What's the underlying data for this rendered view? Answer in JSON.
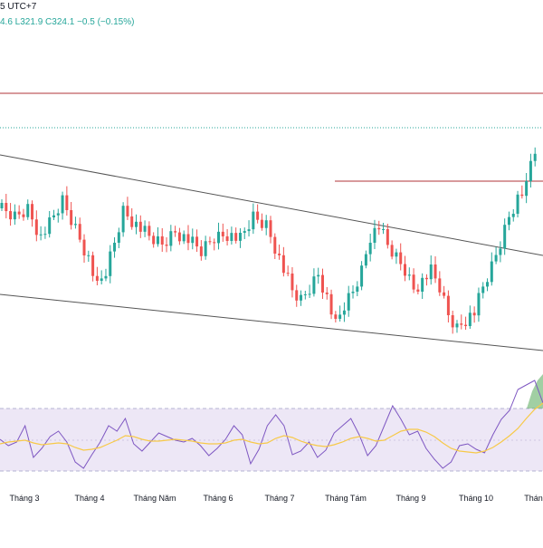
{
  "header": {
    "timeframe": "5 UTC+7",
    "ohlc": "4.6  L321.9  C324.1  −0.5 (−0.15%)"
  },
  "colors": {
    "up": "#26a69a",
    "down": "#ef5350",
    "trendline": "#555555",
    "resistance": "#b2353a",
    "dotted_level": "#26a69a",
    "rsi": "#7e57c2",
    "rsi_ma": "#f7c948",
    "rsi_band": "#ede7f6",
    "overbought_fill": "#43a047",
    "axis_text": "#131722"
  },
  "chart_data": [
    {
      "type": "candlestick",
      "pane": "price",
      "xlabel_ticks": [
        "Tháng 3",
        "Tháng 4",
        "Tháng Năm",
        "Tháng 6",
        "Tháng 7",
        "Tháng Tám",
        "Tháng 9",
        "Tháng 10",
        "Tháng"
      ],
      "close_path": [
        [
          0,
          232
        ],
        [
          3,
          240
        ],
        [
          6,
          230
        ],
        [
          9,
          262
        ],
        [
          11,
          248
        ],
        [
          14,
          222
        ],
        [
          17,
          252
        ],
        [
          20,
          285
        ],
        [
          22,
          318
        ],
        [
          24,
          300
        ],
        [
          26,
          268
        ],
        [
          28,
          232
        ],
        [
          31,
          248
        ],
        [
          34,
          262
        ],
        [
          37,
          270
        ],
        [
          40,
          255
        ],
        [
          43,
          265
        ],
        [
          46,
          278
        ],
        [
          49,
          262
        ],
        [
          52,
          258
        ],
        [
          55,
          265
        ],
        [
          58,
          240
        ],
        [
          61,
          248
        ],
        [
          63,
          272
        ],
        [
          65,
          298
        ],
        [
          67,
          322
        ],
        [
          69,
          332
        ],
        [
          71,
          318
        ],
        [
          73,
          302
        ],
        [
          75,
          328
        ],
        [
          77,
          360
        ],
        [
          79,
          338
        ],
        [
          81,
          322
        ],
        [
          83,
          298
        ],
        [
          85,
          260
        ],
        [
          87,
          250
        ],
        [
          89,
          272
        ],
        [
          91,
          285
        ],
        [
          93,
          298
        ],
        [
          95,
          318
        ],
        [
          97,
          310
        ],
        [
          99,
          300
        ],
        [
          101,
          318
        ],
        [
          103,
          348
        ],
        [
          105,
          362
        ],
        [
          107,
          352
        ],
        [
          109,
          345
        ],
        [
          111,
          318
        ],
        [
          113,
          295
        ],
        [
          115,
          268
        ],
        [
          117,
          238
        ],
        [
          119,
          218
        ],
        [
          121,
          208
        ],
        [
          122.5,
          165
        ]
      ],
      "x_max": 124,
      "price_scale_note": "values are approximate relative price readings; no price axis is printed"
    },
    {
      "type": "line",
      "pane": "rsi",
      "series": [
        {
          "values": [
            485,
            492,
            488,
            470,
            505,
            495,
            482,
            476,
            488,
            510,
            517,
            502,
            488,
            470,
            476,
            462,
            490,
            498,
            488,
            478,
            482,
            486,
            488,
            484,
            492,
            503,
            495,
            485,
            470,
            480,
            512,
            496,
            470,
            458,
            470,
            502,
            498,
            488,
            505,
            497,
            478,
            470,
            462,
            480,
            503,
            492,
            470,
            448,
            463,
            480,
            476,
            495,
            507,
            517,
            510,
            492,
            490,
            496,
            500,
            480,
            463,
            453,
            430,
            425,
            420,
            445
          ]
        },
        {
          "values": [
            490,
            488,
            487,
            486,
            489,
            491,
            490,
            489,
            490,
            494,
            497,
            496,
            494,
            490,
            486,
            481,
            482,
            485,
            487,
            487,
            486,
            485,
            486,
            487,
            489,
            490,
            490,
            489,
            486,
            485,
            488,
            490,
            489,
            484,
            481,
            483,
            487,
            490,
            492,
            493,
            491,
            488,
            484,
            482,
            484,
            487,
            486,
            481,
            476,
            474,
            474,
            477,
            482,
            489,
            495,
            498,
            499,
            500,
            498,
            494,
            488,
            481,
            473,
            462,
            452,
            445
          ]
        }
      ],
      "bands": {
        "upper": 70,
        "lower": 30
      }
    }
  ]
}
